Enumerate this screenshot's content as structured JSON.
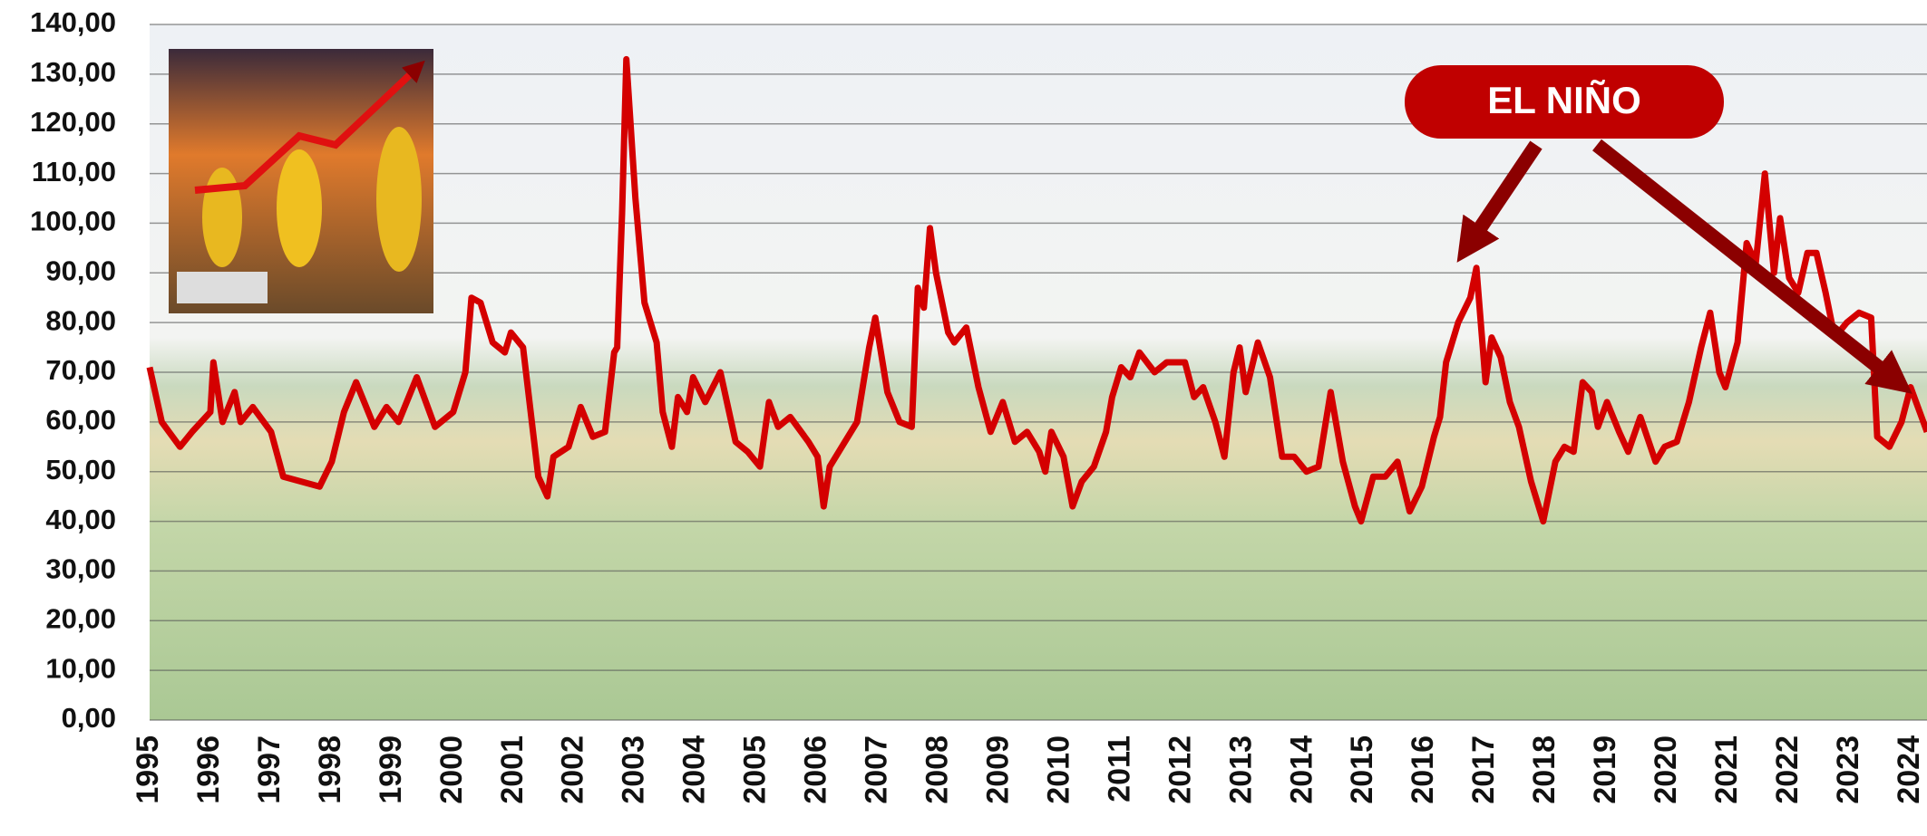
{
  "chart_data": {
    "type": "line",
    "annotation": "EL NIÑO",
    "color": "#d40000",
    "grid": true,
    "x": [
      1995.0,
      1995.2,
      1995.5,
      1995.7,
      1996.0,
      1996.05,
      1996.2,
      1996.4,
      1996.5,
      1996.7,
      1997.0,
      1997.2,
      1997.5,
      1997.8,
      1998.0,
      1998.2,
      1998.4,
      1998.7,
      1998.9,
      1999.1,
      1999.4,
      1999.7,
      2000.0,
      2000.2,
      2000.3,
      2000.45,
      2000.65,
      2000.85,
      2000.95,
      2001.15,
      2001.4,
      2001.55,
      2001.65,
      2001.9,
      2002.1,
      2002.3,
      2002.5,
      2002.65,
      2002.7,
      2002.78,
      2002.85,
      2003.0,
      2003.15,
      2003.35,
      2003.45,
      2003.6,
      2003.7,
      2003.85,
      2003.95,
      2004.15,
      2004.4,
      2004.65,
      2004.85,
      2005.05,
      2005.2,
      2005.35,
      2005.55,
      2005.85,
      2006.0,
      2006.1,
      2006.2,
      2006.45,
      2006.65,
      2006.85,
      2006.95,
      2007.15,
      2007.35,
      2007.55,
      2007.65,
      2007.75,
      2007.85,
      2007.95,
      2008.15,
      2008.25,
      2008.45,
      2008.65,
      2008.85,
      2009.05,
      2009.25,
      2009.45,
      2009.65,
      2009.75,
      2009.85,
      2010.05,
      2010.2,
      2010.35,
      2010.55,
      2010.75,
      2010.85,
      2011.0,
      2011.15,
      2011.3,
      2011.55,
      2011.75,
      2012.05,
      2012.2,
      2012.35,
      2012.55,
      2012.7,
      2012.85,
      2012.95,
      2013.05,
      2013.25,
      2013.45,
      2013.65,
      2013.85,
      2014.05,
      2014.25,
      2014.45,
      2014.65,
      2014.85,
      2014.95,
      2015.15,
      2015.35,
      2015.55,
      2015.75,
      2015.95,
      2016.15,
      2016.25,
      2016.35,
      2016.55,
      2016.75,
      2016.85,
      2017.0,
      2017.1,
      2017.25,
      2017.4,
      2017.55,
      2017.75,
      2017.95,
      2018.15,
      2018.3,
      2018.45,
      2018.6,
      2018.75,
      2018.85,
      2019.0,
      2019.2,
      2019.35,
      2019.55,
      2019.8,
      2019.95,
      2020.15,
      2020.35,
      2020.55,
      2020.7,
      2020.85,
      2020.95,
      2021.15,
      2021.3,
      2021.45,
      2021.6,
      2021.75,
      2021.85,
      2022.0,
      2022.15,
      2022.3,
      2022.45,
      2022.6,
      2022.75,
      2022.95,
      2023.15,
      2023.35,
      2023.45,
      2023.65,
      2023.85,
      2024.0,
      2024.15,
      2024.27
    ],
    "values": [
      71,
      60,
      55,
      58,
      62,
      72,
      60,
      66,
      60,
      63,
      58,
      49,
      48,
      47,
      52,
      62,
      68,
      59,
      63,
      60,
      69,
      59,
      62,
      70,
      85,
      84,
      76,
      74,
      78,
      75,
      49,
      45,
      53,
      55,
      63,
      57,
      58,
      74,
      75,
      102,
      133,
      105,
      84,
      76,
      62,
      55,
      65,
      62,
      69,
      64,
      70,
      56,
      54,
      51,
      64,
      59,
      61,
      56,
      53,
      43,
      51,
      56,
      60,
      75,
      81,
      66,
      60,
      59,
      87,
      83,
      99,
      90,
      78,
      76,
      79,
      67,
      58,
      64,
      56,
      58,
      54,
      50,
      58,
      53,
      43,
      48,
      51,
      58,
      65,
      71,
      69,
      74,
      70,
      72,
      72,
      65,
      67,
      60,
      53,
      70,
      75,
      66,
      76,
      69,
      53,
      53,
      50,
      51,
      66,
      52,
      43,
      40,
      49,
      49,
      52,
      42,
      47,
      57,
      61,
      72,
      80,
      85,
      91,
      68,
      77,
      73,
      64,
      59,
      48,
      40,
      52,
      55,
      54,
      68,
      66,
      59,
      64,
      58,
      54,
      61,
      52,
      55,
      56,
      64,
      75,
      82,
      70,
      67,
      76,
      96,
      92,
      110,
      90,
      101,
      89,
      86,
      94,
      94,
      86,
      77,
      80,
      82,
      81,
      57,
      55,
      60,
      67,
      62,
      58
    ],
    "xlim": [
      1995,
      2024.27
    ],
    "xticks": [
      1995,
      1996,
      1997,
      1998,
      1999,
      2000,
      2001,
      2002,
      2003,
      2004,
      2005,
      2006,
      2007,
      2008,
      2009,
      2010,
      2011,
      2012,
      2013,
      2014,
      2015,
      2016,
      2017,
      2018,
      2019,
      2020,
      2021,
      2022,
      2023,
      2024
    ],
    "ylim": [
      0,
      140
    ],
    "yticks": [
      {
        "value": 0,
        "label": "0,00"
      },
      {
        "value": 10,
        "label": "10,00"
      },
      {
        "value": 20,
        "label": "20,00"
      },
      {
        "value": 30,
        "label": "30,00"
      },
      {
        "value": 40,
        "label": "40,00"
      },
      {
        "value": 50,
        "label": "50,00"
      },
      {
        "value": 60,
        "label": "60,00"
      },
      {
        "value": 70,
        "label": "70,00"
      },
      {
        "value": 80,
        "label": "80,00"
      },
      {
        "value": 90,
        "label": "90,00"
      },
      {
        "value": 100,
        "label": "100,00"
      },
      {
        "value": 110,
        "label": "110,00"
      },
      {
        "value": 120,
        "label": "120,00"
      },
      {
        "value": 130,
        "label": "130,00"
      },
      {
        "value": 140,
        "label": "140,00"
      }
    ]
  }
}
